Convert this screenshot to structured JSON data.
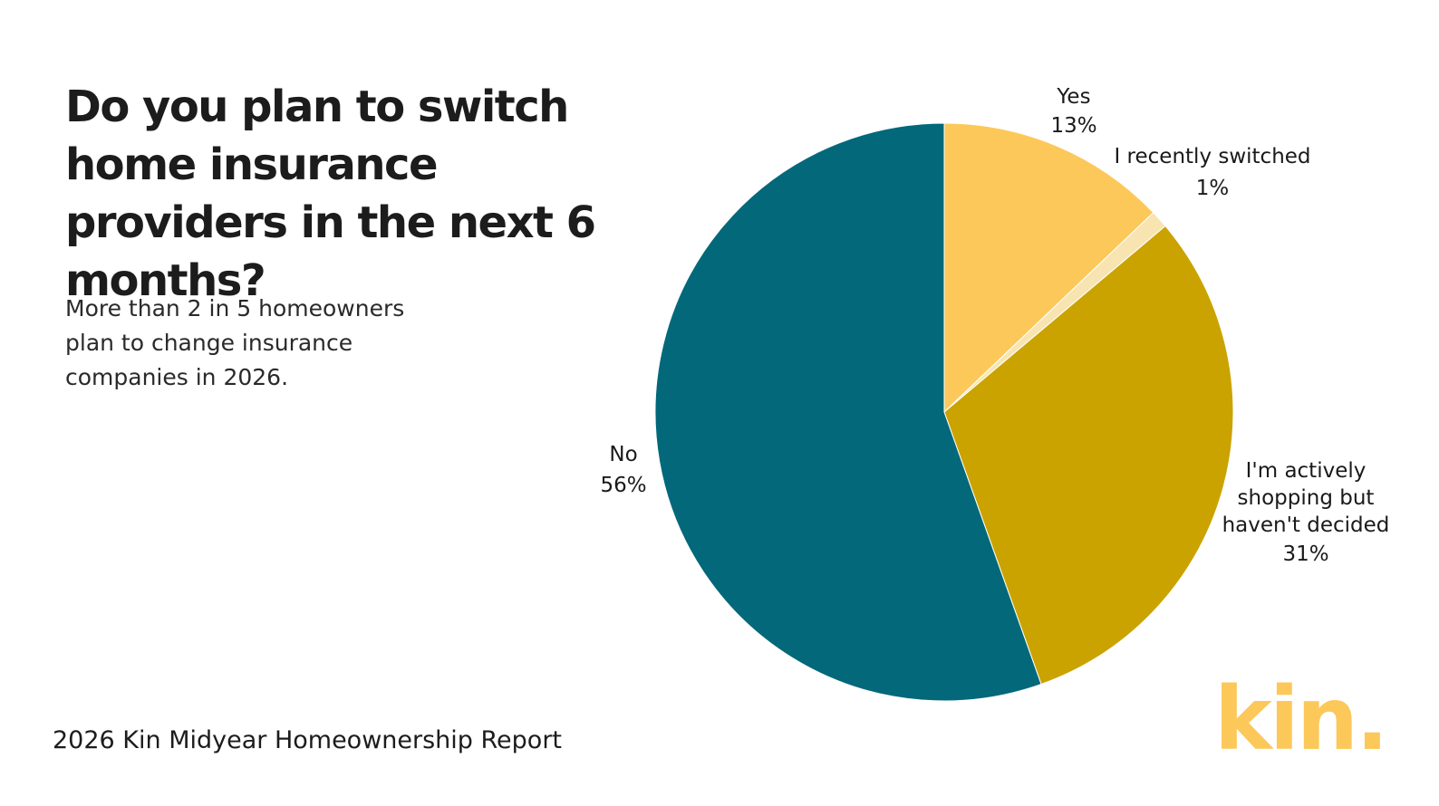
{
  "chart_data": {
    "type": "pie",
    "title": "Do you plan to switch home insurance providers in the next 6 months?",
    "subtitle": "More than 2 in 5 homeowners plan to change insurance companies in 2026.",
    "source": "2026 Kin Midyear Homeownership Report",
    "logo": "kin.",
    "categories": [
      "Yes",
      "I recently switched",
      "I'm actively shopping but haven't decided",
      "No"
    ],
    "values": [
      13,
      1,
      31,
      56
    ],
    "value_labels": [
      "13%",
      "1%",
      "31%",
      "56%"
    ],
    "colors": [
      "#fdc85a",
      "#f8e4b0",
      "#cba300",
      "#02687a"
    ]
  }
}
